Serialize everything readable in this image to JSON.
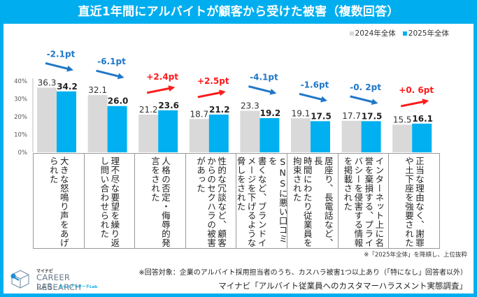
{
  "title": "直近1年間にアルバイトが顧客から受けた被害（複数回答）",
  "legend": {
    "items": [
      {
        "label": "2024年全体",
        "color": "#D9D9D9"
      },
      {
        "label": "2025年全体",
        "color": "#00B0F0"
      }
    ]
  },
  "chart_data": {
    "type": "bar",
    "title": "直近1年間にアルバイトが顧客から受けた被害（複数回答）",
    "xlabel": "",
    "ylabel": "",
    "ylim": [
      0,
      40
    ],
    "yticks": [
      "0%",
      "10%",
      "20%",
      "30%",
      "40%"
    ],
    "ytick_values": [
      0,
      10,
      20,
      30,
      40
    ],
    "grid": false,
    "legend_position": "top-right",
    "categories": [
      "大きな怒鳴り声をあげられた",
      "理不尽な要望を繰り返し問い合わせられた",
      "人格の否定・侮辱的発言をされた",
      "性的な冗談など、顧客からのセクハラの被害があった",
      "SNSに悪い口コミを書くなど、ブランドイメージを下げるような脅しをされた",
      "居座り、長電話など、長時間にわたり従業員を拘束された",
      "インターネット上に名誉を棄損する、プライバシーを侵害する情報を掲載された",
      "正当な理由なく、謝罪や土下座を強要された"
    ],
    "category_lines": [
      "大きな怒鳴り声をあげ\nられた",
      "理不尽な要望を繰り返\nし問い合わせられた",
      "人格の否定・侮辱的発\n言をされた",
      "性的な冗談など、顧客\nからのセクハラの被害\nがあった",
      "SNSに悪い口コミを\n書くなど、ブランドイ\nメージを下げるような\n脅しをされた",
      "居座り、長電話など、長\n時間にわたり従業員を\n拘束された",
      "インターネット上に名\n誉を棄損する、プライ\nバシーを侵害する情報\nを掲載された",
      "正当な理由なく、謝罪\nや土下座を強要された"
    ],
    "series": [
      {
        "name": "2024年全体",
        "color": "#D9D9D9",
        "values": [
          36.3,
          32.1,
          21.2,
          18.7,
          23.3,
          19.1,
          17.7,
          15.5
        ],
        "labels": [
          "36.3",
          "32.1",
          "21.2",
          "18.7",
          "23.3",
          "19.1",
          "17.7",
          "15.5"
        ]
      },
      {
        "name": "2025年全体",
        "color": "#00B0F0",
        "values": [
          34.2,
          26.0,
          23.6,
          21.2,
          19.2,
          17.5,
          17.5,
          16.1
        ],
        "labels": [
          "34.2",
          "26.0",
          "23.6",
          "21.2",
          "19.2",
          "17.5",
          "17.5",
          "16.1"
        ]
      }
    ],
    "annotations": [
      {
        "text": "-2.1pt",
        "direction": "down",
        "color": "#1F77C8"
      },
      {
        "text": "-6.1pt",
        "direction": "down",
        "color": "#1F77C8"
      },
      {
        "text": "+2.4pt",
        "direction": "up",
        "color": "#FF1A1A"
      },
      {
        "text": "+2.5pt",
        "direction": "up",
        "color": "#FF1A1A"
      },
      {
        "text": "-4.1pt",
        "direction": "down",
        "color": "#1F77C8"
      },
      {
        "text": "-1.6pt",
        "direction": "down",
        "color": "#1F77C8"
      },
      {
        "text": "-0. 2pt",
        "direction": "down",
        "color": "#1F77C8"
      },
      {
        "text": "+0. 6pt",
        "direction": "up",
        "color": "#FF1A1A"
      }
    ]
  },
  "notes": {
    "sort_note": "※「2025年全体」を降順し、上位抜粋",
    "respondents": "※回答対象：企業のアルバイト採用担当者のうち、カスハラ被害1つ以上あり（「特になし」回答者以外）",
    "source": "マイナビ「アルバイト従業員へのカスタマーハラスメント実態調査」"
  },
  "logo": {
    "kana": "マイナビ",
    "line1": "CAREER RESEARCH",
    "line2": "LAB",
    "sub": "キャリアリサーチLab"
  },
  "colors": {
    "frame": "#00AEEF",
    "bar2024": "#D9D9D9",
    "bar2025": "#00B0F0",
    "down": "#1F77C8",
    "up": "#FF1A1A"
  }
}
